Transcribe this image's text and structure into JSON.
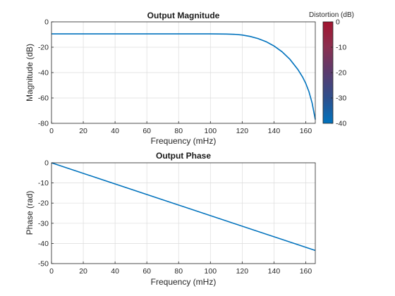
{
  "chart_data": [
    {
      "type": "line",
      "title": "Output Magnitude",
      "xlabel": "Frequency (mHz)",
      "ylabel": "Magnitude (dB)",
      "xlim": [
        0,
        166
      ],
      "ylim": [
        -80,
        0
      ],
      "xticks": [
        0,
        20,
        40,
        60,
        80,
        100,
        120,
        140,
        160
      ],
      "yticks": [
        0,
        -20,
        -40,
        -60,
        -80
      ],
      "grid": true,
      "series": [
        {
          "color": "#0072bd",
          "x": [
            0,
            20,
            40,
            60,
            80,
            100,
            110,
            115,
            120,
            125,
            130,
            135,
            140,
            145,
            150,
            155,
            158,
            160,
            162,
            164,
            166
          ],
          "y": [
            -9.5,
            -9.5,
            -9.5,
            -9.5,
            -9.5,
            -9.5,
            -9.6,
            -9.8,
            -10.4,
            -11.5,
            -13.2,
            -15.6,
            -19.0,
            -23.5,
            -29.5,
            -37.5,
            -43.5,
            -48.5,
            -55,
            -64,
            -77
          ]
        }
      ],
      "colorbar": {
        "title": "Distortion (dB)",
        "ticks": [
          0,
          -10,
          -20,
          -30,
          -40
        ],
        "range": [
          -40,
          0
        ],
        "colormap": [
          "#0072bd",
          "#2e4f8c",
          "#5a3b6e",
          "#8a3050",
          "#a2142f"
        ]
      }
    },
    {
      "type": "line",
      "title": "Output Phase",
      "xlabel": "Frequency (mHz)",
      "ylabel": "Phase (rad)",
      "xlim": [
        0,
        166
      ],
      "ylim": [
        -50,
        0
      ],
      "xticks": [
        0,
        20,
        40,
        60,
        80,
        100,
        120,
        140,
        160
      ],
      "yticks": [
        0,
        -10,
        -20,
        -30,
        -40,
        -50
      ],
      "grid": true,
      "series": [
        {
          "color": "#0072bd",
          "x": [
            0,
            166
          ],
          "y": [
            0,
            -43.5
          ]
        }
      ]
    }
  ]
}
